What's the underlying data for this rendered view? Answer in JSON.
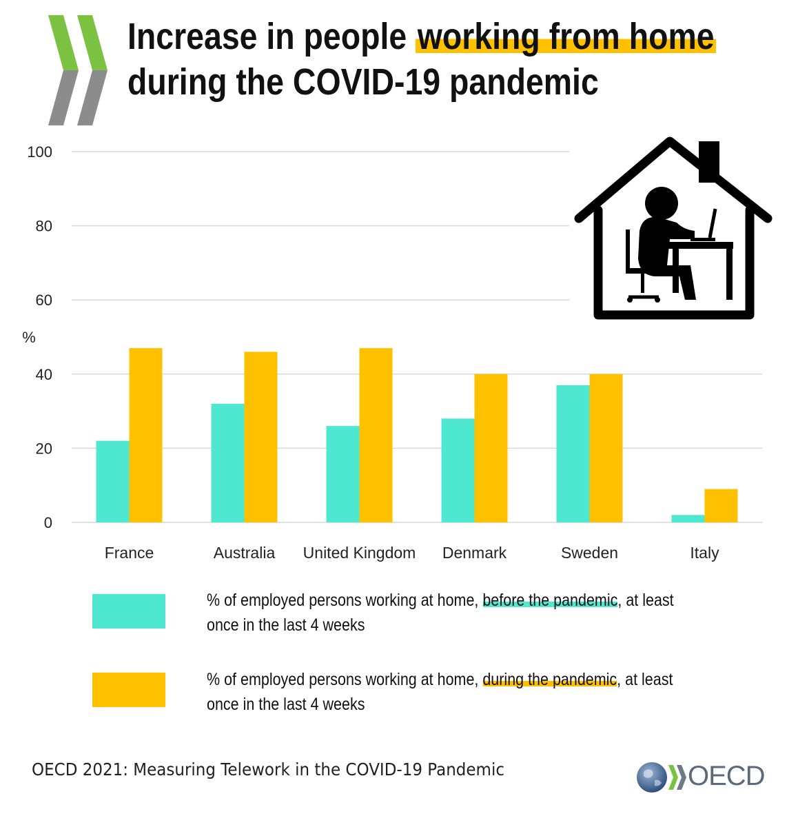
{
  "title": {
    "line1_pre": "Increase in people ",
    "line1_highlight": "working from home",
    "line2": "during the COVID-19 pandemic"
  },
  "colors": {
    "before": "#4de8cf",
    "during": "#ffc000",
    "grid": "#d9d9d9"
  },
  "chart_data": {
    "type": "bar",
    "ylabel": "%",
    "ylim": [
      0,
      100
    ],
    "yticks": [
      0,
      20,
      40,
      60,
      80,
      100
    ],
    "categories": [
      "France",
      "Australia",
      "United Kingdom",
      "Denmark",
      "Sweden",
      "Italy"
    ],
    "series": [
      {
        "name": "% of employed persons working at home, before the pandemic, at least once in the last 4 weeks",
        "values": [
          22,
          32,
          26,
          28,
          37,
          2
        ]
      },
      {
        "name": "% of employed persons working at home, during the pandemic, at least once in the last 4 weeks",
        "values": [
          47,
          46,
          47,
          40,
          40,
          9
        ]
      }
    ],
    "grid": true
  },
  "legend": {
    "before": {
      "pre": "% of employed persons working at home, ",
      "highlight": "before the pandemic",
      "post": ", at least once in the last 4 weeks"
    },
    "during": {
      "pre": "% of employed persons working at home, ",
      "highlight": "during the pandemic",
      "post": ", at least once in the last 4 weeks"
    }
  },
  "source": "OECD 2021: Measuring Telework in the COVID-19 Pandemic",
  "brand": "OECD",
  "icons": [
    "oecd-chevrons-icon",
    "home-office-icon",
    "globe-icon"
  ]
}
